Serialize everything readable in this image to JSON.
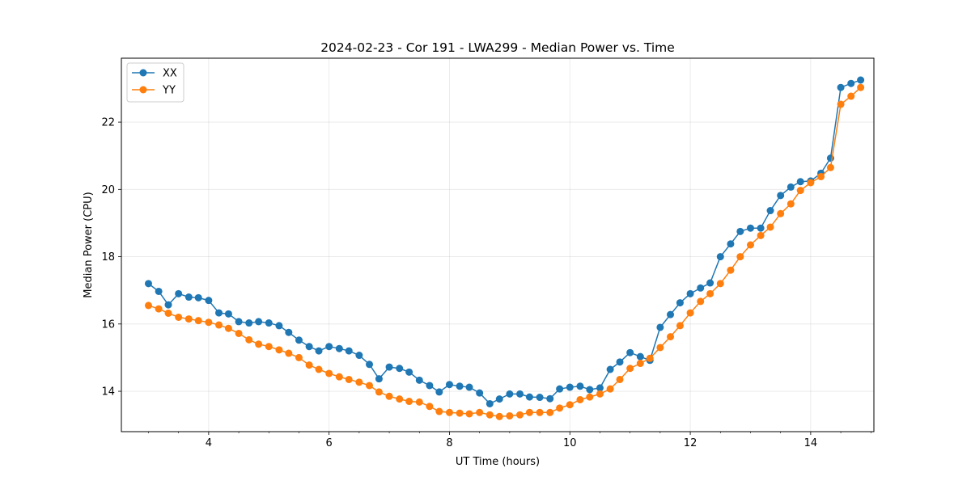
{
  "chart_data": {
    "type": "line",
    "title": "2024-02-23 - Cor 191 - LWA299 - Median Power vs. Time",
    "xlabel": "UT Time (hours)",
    "ylabel": "Median Power (CPU)",
    "xlim": [
      2.55,
      15.05
    ],
    "ylim": [
      12.8,
      23.9
    ],
    "xticks": [
      4,
      6,
      8,
      10,
      12,
      14
    ],
    "xtick_labels": [
      "4",
      "6",
      "8",
      "10",
      "12",
      "14"
    ],
    "yticks": [
      14,
      16,
      18,
      20,
      22
    ],
    "ytick_labels": [
      "14",
      "16",
      "18",
      "20",
      "22"
    ],
    "grid": true,
    "legend_position": "upper-left",
    "x": [
      3.0,
      3.17,
      3.33,
      3.5,
      3.67,
      3.83,
      4.0,
      4.17,
      4.33,
      4.5,
      4.67,
      4.83,
      5.0,
      5.17,
      5.33,
      5.5,
      5.67,
      5.83,
      6.0,
      6.17,
      6.33,
      6.5,
      6.67,
      6.83,
      7.0,
      7.17,
      7.33,
      7.5,
      7.67,
      7.83,
      8.0,
      8.17,
      8.33,
      8.5,
      8.67,
      8.83,
      9.0,
      9.17,
      9.33,
      9.5,
      9.67,
      9.83,
      10.0,
      10.17,
      10.33,
      10.5,
      10.67,
      10.83,
      11.0,
      11.17,
      11.33,
      11.5,
      11.67,
      11.83,
      12.0,
      12.17,
      12.33,
      12.5,
      12.67,
      12.83,
      13.0,
      13.17,
      13.33,
      13.5,
      13.67,
      13.83,
      14.0,
      14.17,
      14.33,
      14.5,
      14.67,
      14.83
    ],
    "series": [
      {
        "name": "XX",
        "color": "#1f77b4",
        "values": [
          17.2,
          16.97,
          16.57,
          16.9,
          16.8,
          16.78,
          16.7,
          16.33,
          16.3,
          16.07,
          16.03,
          16.07,
          16.03,
          15.95,
          15.75,
          15.52,
          15.33,
          15.2,
          15.33,
          15.27,
          15.2,
          15.07,
          14.8,
          14.37,
          14.72,
          14.68,
          14.57,
          14.33,
          14.17,
          13.98,
          14.2,
          14.15,
          14.12,
          13.95,
          13.63,
          13.77,
          13.92,
          13.92,
          13.83,
          13.82,
          13.78,
          14.07,
          14.12,
          14.15,
          14.05,
          14.1,
          14.65,
          14.87,
          15.15,
          15.03,
          14.92,
          15.9,
          16.28,
          16.63,
          16.9,
          17.07,
          17.22,
          18.0,
          18.38,
          18.75,
          18.85,
          18.85,
          19.37,
          19.82,
          20.07,
          20.23,
          20.25,
          20.48,
          20.93,
          23.03,
          23.15,
          23.25
        ]
      },
      {
        "name": "YY",
        "color": "#ff7f0e",
        "values": [
          16.55,
          16.45,
          16.32,
          16.2,
          16.15,
          16.1,
          16.05,
          15.97,
          15.87,
          15.72,
          15.53,
          15.4,
          15.33,
          15.23,
          15.13,
          15.0,
          14.78,
          14.65,
          14.53,
          14.43,
          14.35,
          14.27,
          14.17,
          13.98,
          13.85,
          13.77,
          13.7,
          13.68,
          13.55,
          13.4,
          13.37,
          13.35,
          13.33,
          13.37,
          13.3,
          13.25,
          13.27,
          13.3,
          13.37,
          13.37,
          13.37,
          13.5,
          13.6,
          13.75,
          13.83,
          13.92,
          14.07,
          14.35,
          14.68,
          14.83,
          14.98,
          15.3,
          15.62,
          15.95,
          16.33,
          16.67,
          16.9,
          17.2,
          17.6,
          18.0,
          18.35,
          18.63,
          18.88,
          19.28,
          19.57,
          19.97,
          20.2,
          20.38,
          20.65,
          22.53,
          22.77,
          23.03
        ]
      }
    ]
  }
}
